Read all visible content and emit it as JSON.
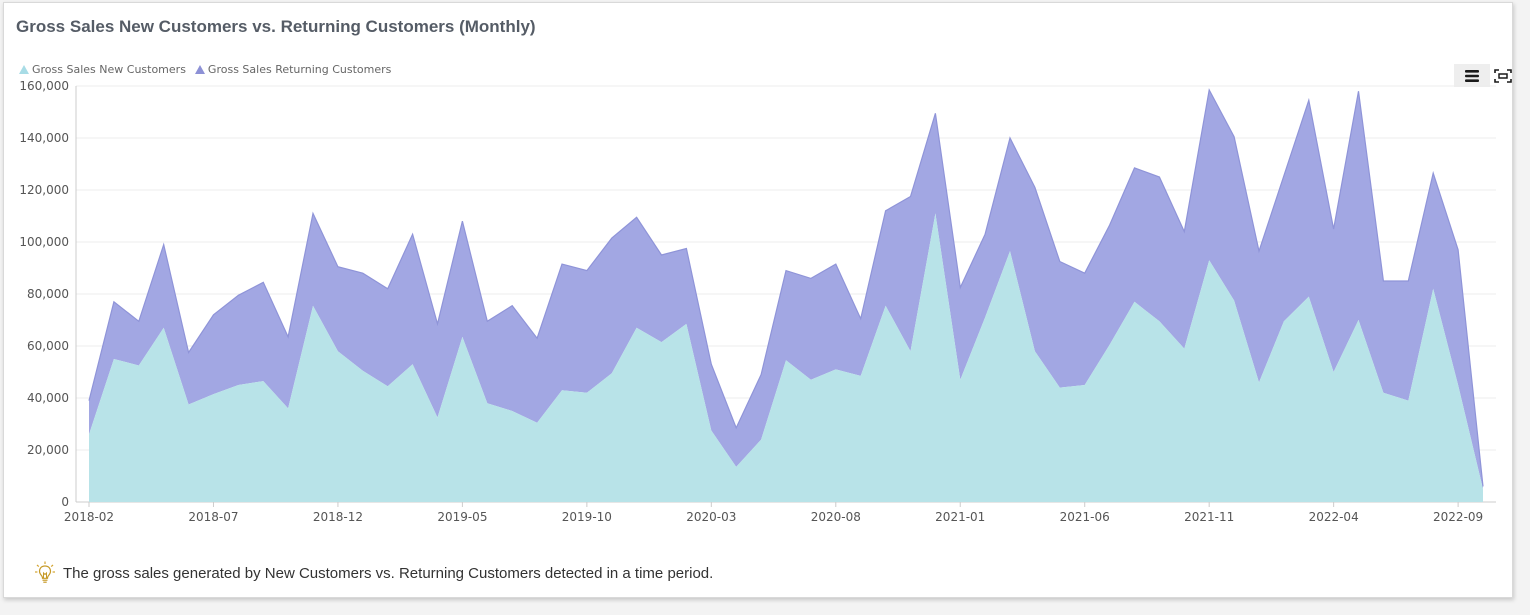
{
  "card": {
    "footer_text": "The gross sales generated by New Customers vs. Returning Customers detected in a time period."
  },
  "icons": {
    "menu": "hamburger-menu-icon",
    "fullscreen": "fullscreen-icon",
    "tip": "lightbulb-icon"
  },
  "colors": {
    "new_customers": "#b8e3e8",
    "returning_customers": "#a2a7e3",
    "returning_line": "#8f94d8",
    "legend_new": "#a8dce6",
    "legend_returning": "#8d91d6"
  },
  "chart_data": {
    "type": "area",
    "stacked": true,
    "title": "Gross Sales New Customers vs. Returning Customers (Monthly)",
    "xlabel": "",
    "ylabel": "",
    "ylim": [
      0,
      160000
    ],
    "yticks": [
      "0",
      "20,000",
      "40,000",
      "60,000",
      "80,000",
      "100,000",
      "120,000",
      "140,000",
      "160,000"
    ],
    "grid": true,
    "legend_position": "top-left",
    "x": [
      "2018-02",
      "2018-03",
      "2018-04",
      "2018-05",
      "2018-06",
      "2018-07",
      "2018-08",
      "2018-09",
      "2018-10",
      "2018-11",
      "2018-12",
      "2019-01",
      "2019-02",
      "2019-03",
      "2019-04",
      "2019-05",
      "2019-06",
      "2019-07",
      "2019-08",
      "2019-09",
      "2019-10",
      "2019-11",
      "2019-12",
      "2020-01",
      "2020-02",
      "2020-03",
      "2020-04",
      "2020-05",
      "2020-06",
      "2020-07",
      "2020-08",
      "2020-09",
      "2020-10",
      "2020-11",
      "2020-12",
      "2021-01",
      "2021-02",
      "2021-03",
      "2021-04",
      "2021-05",
      "2021-06",
      "2021-07",
      "2021-08",
      "2021-09",
      "2021-10",
      "2021-11",
      "2021-12",
      "2022-01",
      "2022-02",
      "2022-03",
      "2022-04",
      "2022-05",
      "2022-06",
      "2022-07",
      "2022-08",
      "2022-09",
      "2022-10"
    ],
    "xtick_labels": [
      "2018-02",
      "2018-07",
      "2018-12",
      "2019-05",
      "2019-10",
      "2020-03",
      "2020-08",
      "2021-01",
      "2021-06",
      "2021-11",
      "2022-04",
      "2022-09"
    ],
    "series": [
      {
        "name": "Gross Sales New Customers",
        "values": [
          26000,
          55000,
          52500,
          67000,
          37500,
          41500,
          45000,
          46500,
          36000,
          75500,
          58000,
          50500,
          44500,
          53000,
          32500,
          63500,
          38000,
          35000,
          30500,
          43000,
          42000,
          49500,
          67000,
          61500,
          68500,
          27500,
          13500,
          24000,
          54500,
          47000,
          51000,
          48500,
          75500,
          58000,
          111000,
          47000,
          71000,
          96500,
          58000,
          44000,
          45000,
          60500,
          77000,
          69500,
          59000,
          93000,
          77500,
          46000,
          69500,
          79000,
          50000,
          70000,
          42000,
          39000,
          82000,
          45000,
          5000
        ]
      },
      {
        "name": "Gross Sales Returning Customers",
        "values": [
          13000,
          22000,
          17000,
          32000,
          20000,
          30500,
          34500,
          38000,
          27500,
          35500,
          32500,
          37500,
          37500,
          50000,
          36000,
          44500,
          31500,
          40500,
          32500,
          48500,
          47000,
          52000,
          42500,
          33500,
          29000,
          25500,
          15000,
          25000,
          34500,
          39000,
          40500,
          22000,
          36500,
          59500,
          38500,
          35500,
          32000,
          43500,
          63000,
          48500,
          43000,
          46000,
          51500,
          55500,
          45000,
          65500,
          63000,
          50500,
          56000,
          75500,
          55000,
          88000,
          43000,
          46000,
          44500,
          52000,
          1000
        ]
      }
    ]
  }
}
